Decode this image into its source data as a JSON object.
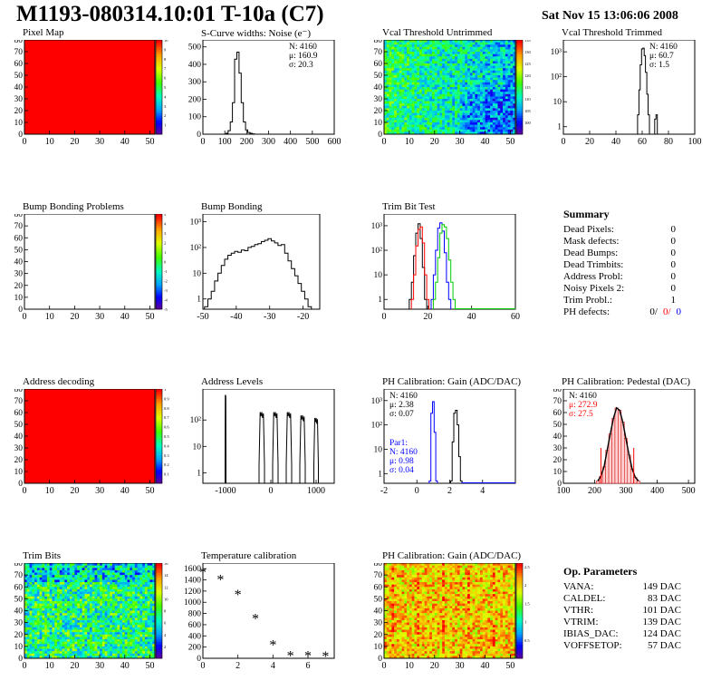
{
  "header": {
    "title": "M1193-080314.10:01 T-10a (C7)",
    "timestamp": "Sat Nov 15 13:06:06 2008"
  },
  "colors": {
    "red": "#ff0000",
    "blue": "#0000ff",
    "green": "#00cc00"
  },
  "chart_data": [
    {
      "id": "pixel_map",
      "type": "heatmap",
      "title": "Pixel Map",
      "xlim": [
        0,
        52
      ],
      "ylim": [
        0,
        80
      ],
      "xticks": [
        "0",
        "10",
        "20",
        "30",
        "40",
        "50"
      ],
      "yticks": [
        "0",
        "10",
        "20",
        "30",
        "40",
        "50",
        "60",
        "70",
        "80"
      ],
      "fill": "uniform-red",
      "colorbar": {
        "min": 0,
        "max": 10,
        "ticks": [
          "1",
          "2",
          "3",
          "4",
          "5",
          "6",
          "7",
          "8",
          "9",
          "10"
        ]
      }
    },
    {
      "id": "scurve",
      "type": "line",
      "title": "S-Curve widths: Noise (e⁻)",
      "xlim": [
        0,
        600
      ],
      "ylim": [
        0,
        540
      ],
      "xticks": [
        "0",
        "100",
        "200",
        "300",
        "400",
        "500",
        "600"
      ],
      "yticks": [
        "0",
        "100",
        "200",
        "300",
        "400",
        "500"
      ],
      "stats": [
        "N: 4160",
        "μ: 160.9",
        "σ: 20.3"
      ],
      "series": [
        {
          "x": [
            100,
            110,
            120,
            130,
            140,
            150,
            160,
            170,
            180,
            190,
            200,
            210,
            220,
            230,
            240,
            250,
            260,
            270
          ],
          "y": [
            0,
            5,
            20,
            70,
            180,
            430,
            470,
            350,
            180,
            70,
            25,
            10,
            5,
            2,
            0,
            0,
            0,
            0
          ]
        }
      ]
    },
    {
      "id": "vcal_untrimmed",
      "type": "heatmap",
      "title": "Vcal Threshold Untrimmed",
      "xlim": [
        0,
        52
      ],
      "ylim": [
        0,
        80
      ],
      "xticks": [
        "0",
        "10",
        "20",
        "30",
        "40",
        "50"
      ],
      "yticks": [
        "0",
        "10",
        "20",
        "30",
        "40",
        "50",
        "60",
        "70",
        "80"
      ],
      "fill": "noisy-blue-green",
      "colorbar": {
        "min": 95,
        "max": 135,
        "ticks": [
          "100",
          "105",
          "110",
          "115",
          "120",
          "125",
          "130",
          "135"
        ]
      }
    },
    {
      "id": "vcal_trimmed",
      "type": "line",
      "title": "Vcal Threshold Trimmed",
      "xlim": [
        0,
        100
      ],
      "ylim": [
        0.5,
        3000
      ],
      "yscale": "log",
      "xticks": [
        "0",
        "20",
        "40",
        "60",
        "80",
        "100"
      ],
      "yticks": [
        "1",
        "10",
        "10²",
        "10³"
      ],
      "stats": [
        "N: 4160",
        "μ: 60.7",
        "σ:  1.5"
      ],
      "series": [
        {
          "x": [
            56,
            57,
            58,
            59,
            60,
            61,
            62,
            63,
            64,
            65,
            66,
            67,
            68,
            69,
            70,
            71,
            72
          ],
          "y": [
            0.5,
            3,
            30,
            300,
            1300,
            1400,
            700,
            150,
            20,
            3,
            0.5,
            0.5,
            0.5,
            0.5,
            2,
            3,
            0.5
          ]
        }
      ]
    },
    {
      "id": "bump_problems",
      "type": "heatmap",
      "title": "Bump Bonding Problems",
      "xlim": [
        0,
        52
      ],
      "ylim": [
        0,
        80
      ],
      "xticks": [
        "0",
        "10",
        "20",
        "30",
        "40",
        "50"
      ],
      "yticks": [
        "0",
        "10",
        "20",
        "30",
        "40",
        "50",
        "60",
        "70",
        "80"
      ],
      "fill": "empty",
      "colorbar": {
        "min": -5,
        "max": 5,
        "ticks": [
          "-5",
          "-4",
          "-3",
          "-2",
          "-1",
          "0",
          "1",
          "2",
          "3",
          "4",
          "5"
        ]
      }
    },
    {
      "id": "bump_bonding",
      "type": "line",
      "title": "Bump Bonding",
      "xlim": [
        -50,
        -15
      ],
      "ylim": [
        0.4,
        2000
      ],
      "yscale": "log",
      "xticks": [
        "-50",
        "-40",
        "-30",
        "-20"
      ],
      "yticks": [
        "1",
        "10",
        "10²",
        "10³"
      ],
      "series": [
        {
          "x": [
            -49,
            -48,
            -47,
            -46,
            -45,
            -44,
            -43,
            -42,
            -41,
            -40,
            -39,
            -38,
            -37,
            -36,
            -35,
            -34,
            -33,
            -32,
            -31,
            -30,
            -29,
            -28,
            -27,
            -26,
            -25,
            -24,
            -23,
            -22,
            -21,
            -20,
            -19,
            -18
          ],
          "y": [
            0.5,
            1,
            2,
            5,
            10,
            20,
            35,
            50,
            60,
            70,
            65,
            80,
            75,
            100,
            110,
            130,
            140,
            170,
            190,
            220,
            180,
            150,
            120,
            130,
            60,
            30,
            15,
            8,
            4,
            2,
            1,
            0.5
          ]
        }
      ]
    },
    {
      "id": "trim_bit_test",
      "type": "line",
      "title": "Trim Bit Test",
      "xlim": [
        0,
        60
      ],
      "ylim": [
        0.4,
        3000
      ],
      "yscale": "log",
      "xticks": [
        "0",
        "20",
        "40",
        "60"
      ],
      "yticks": [
        "1",
        "10",
        "10²",
        "10³"
      ],
      "series": [
        {
          "color": "#000000",
          "x": [
            12,
            13,
            14,
            15,
            16,
            17,
            18,
            19
          ],
          "y": [
            1,
            5,
            60,
            500,
            1200,
            300,
            20,
            1
          ]
        },
        {
          "color": "#ff0000",
          "x": [
            13,
            14,
            15,
            16,
            17,
            18,
            19,
            20
          ],
          "y": [
            1,
            10,
            150,
            700,
            900,
            200,
            10,
            1
          ]
        },
        {
          "color": "#0000ff",
          "x": [
            22,
            23,
            24,
            25,
            26,
            27,
            28,
            29,
            30
          ],
          "y": [
            1,
            10,
            100,
            800,
            1300,
            600,
            80,
            5,
            1
          ]
        },
        {
          "color": "#00cc00",
          "x": [
            23,
            24,
            25,
            26,
            27,
            28,
            29,
            30,
            31,
            32
          ],
          "y": [
            1,
            5,
            50,
            500,
            1100,
            900,
            300,
            40,
            5,
            1
          ]
        }
      ]
    },
    {
      "id": "address_decoding",
      "type": "heatmap",
      "title": "Address decoding",
      "xlim": [
        0,
        52
      ],
      "ylim": [
        0,
        80
      ],
      "xticks": [
        "0",
        "10",
        "20",
        "30",
        "40",
        "50"
      ],
      "yticks": [
        "0",
        "10",
        "20",
        "30",
        "40",
        "50",
        "60",
        "70",
        "80"
      ],
      "fill": "uniform-red",
      "colorbar": {
        "min": 0,
        "max": 1,
        "ticks": [
          "0.1",
          "0.2",
          "0.3",
          "0.4",
          "0.5",
          "0.6",
          "0.7",
          "0.8",
          "0.9",
          "1"
        ]
      }
    },
    {
      "id": "address_levels",
      "type": "line",
      "title": "Address Levels",
      "xlim": [
        -1500,
        1400
      ],
      "ylim": [
        0.4,
        1500
      ],
      "yscale": "log",
      "xticks": [
        "-1000",
        "0",
        "1000"
      ],
      "yticks": [
        "1",
        "10",
        "10²"
      ],
      "peaks": [
        {
          "x": -1000,
          "y": 900,
          "width": 20
        },
        {
          "x": -200,
          "y": 200,
          "width": 120
        },
        {
          "x": 100,
          "y": 200,
          "width": 120
        },
        {
          "x": 400,
          "y": 200,
          "width": 120
        },
        {
          "x": 700,
          "y": 150,
          "width": 120
        },
        {
          "x": 1000,
          "y": 120,
          "width": 100
        }
      ]
    },
    {
      "id": "ph_gain",
      "type": "line",
      "title": "PH Calibration: Gain (ADC/DAC)",
      "xlim": [
        -2,
        6
      ],
      "ylim": [
        0.4,
        3000
      ],
      "yscale": "log",
      "xticks": [
        "-2",
        "0",
        "2",
        "4"
      ],
      "yticks": [
        "1",
        "10",
        "10²",
        "10³"
      ],
      "stats": [
        "N: 4160",
        "μ: 2.38",
        "σ: 0.07"
      ],
      "stats_par1": [
        "Par1:",
        "N: 4160",
        "μ: 0.98",
        "σ: 0.04"
      ],
      "series": [
        {
          "color": "#000000",
          "x": [
            2.1,
            2.2,
            2.3,
            2.4,
            2.5,
            2.6,
            2.7
          ],
          "y": [
            0.5,
            20,
            300,
            400,
            100,
            5,
            0.5
          ]
        },
        {
          "color": "#0000ff",
          "x": [
            0.8,
            0.9,
            1.0,
            1.1,
            1.2
          ],
          "y": [
            0.5,
            300,
            900,
            50,
            0.5
          ]
        }
      ]
    },
    {
      "id": "ph_pedestal",
      "type": "bar",
      "title": "PH Calibration: Pedestal (DAC)",
      "xlim": [
        100,
        520
      ],
      "ylim": [
        0,
        80
      ],
      "xticks": [
        "100",
        "200",
        "300",
        "400",
        "500"
      ],
      "yticks": [
        "0",
        "10",
        "20",
        "30",
        "40",
        "50",
        "60",
        "70",
        "80"
      ],
      "stats": [
        "N: 4160",
        "μ: 272.9",
        "σ: 27.5"
      ],
      "series": [
        {
          "x": [
            210,
            220,
            230,
            240,
            250,
            260,
            270,
            280,
            290,
            300,
            310,
            320,
            330,
            340
          ],
          "y": [
            2,
            6,
            14,
            28,
            42,
            55,
            64,
            62,
            52,
            38,
            24,
            12,
            5,
            2
          ]
        }
      ]
    },
    {
      "id": "trim_bits",
      "type": "heatmap",
      "title": "Trim Bits",
      "xlim": [
        0,
        52
      ],
      "ylim": [
        0,
        80
      ],
      "xticks": [
        "0",
        "10",
        "20",
        "30",
        "40",
        "50"
      ],
      "yticks": [
        "0",
        "10",
        "20",
        "30",
        "40",
        "50",
        "60",
        "70",
        "80"
      ],
      "fill": "noisy-green-cyan",
      "colorbar": {
        "min": 0,
        "max": 16,
        "ticks": [
          "2",
          "4",
          "6",
          "8",
          "10",
          "12",
          "14",
          "16"
        ]
      }
    },
    {
      "id": "temperature",
      "type": "scatter",
      "title": "Temperature calibration",
      "xlim": [
        0,
        7.5
      ],
      "ylim": [
        0,
        1700
      ],
      "xticks": [
        "0",
        "2",
        "4",
        "6"
      ],
      "yticks": [
        "0",
        "200",
        "400",
        "600",
        "800",
        "1000",
        "1200",
        "1400",
        "1600"
      ],
      "series": [
        {
          "x": [
            0,
            1,
            2,
            3,
            4,
            5,
            6,
            7
          ],
          "y": [
            1550,
            1420,
            1150,
            720,
            250,
            60,
            60,
            50
          ]
        }
      ]
    },
    {
      "id": "ph_gain_map",
      "type": "heatmap",
      "title": "PH Calibration: Gain (ADC/DAC)",
      "xlim": [
        0,
        52
      ],
      "ylim": [
        0,
        80
      ],
      "xticks": [
        "0",
        "10",
        "20",
        "30",
        "40",
        "50"
      ],
      "yticks": [
        "0",
        "10",
        "20",
        "30",
        "40",
        "50",
        "60",
        "70",
        "80"
      ],
      "fill": "noisy-red-orange",
      "colorbar": {
        "min": 0,
        "max": 2.6,
        "ticks": [
          "0.5",
          "1",
          "1.5",
          "2",
          "2.5"
        ]
      }
    }
  ],
  "summary": {
    "title": "Summary",
    "rows": [
      {
        "label": "Dead Pixels:",
        "value": "0"
      },
      {
        "label": "Mask defects:",
        "value": "0"
      },
      {
        "label": "Dead Bumps:",
        "value": "0"
      },
      {
        "label": "Dead Trimbits:",
        "value": "0"
      },
      {
        "label": "Address Probl:",
        "value": "0"
      },
      {
        "label": "Noisy Pixels 2:",
        "value": "0"
      },
      {
        "label": "Trim Probl.:",
        "value": "1"
      }
    ],
    "ph": {
      "label": "PH defects:",
      "black": "0/",
      "red": "0/",
      "blue": "0"
    }
  },
  "op_params": {
    "title": "Op. Parameters",
    "rows": [
      {
        "label": "VANA:",
        "value": "149 DAC"
      },
      {
        "label": "CALDEL:",
        "value": "83 DAC"
      },
      {
        "label": "VTHR:",
        "value": "101 DAC"
      },
      {
        "label": "VTRIM:",
        "value": "139 DAC"
      },
      {
        "label": "IBIAS_DAC:",
        "value": "124 DAC"
      },
      {
        "label": "VOFFSETOP:",
        "value": "57 DAC"
      }
    ]
  }
}
